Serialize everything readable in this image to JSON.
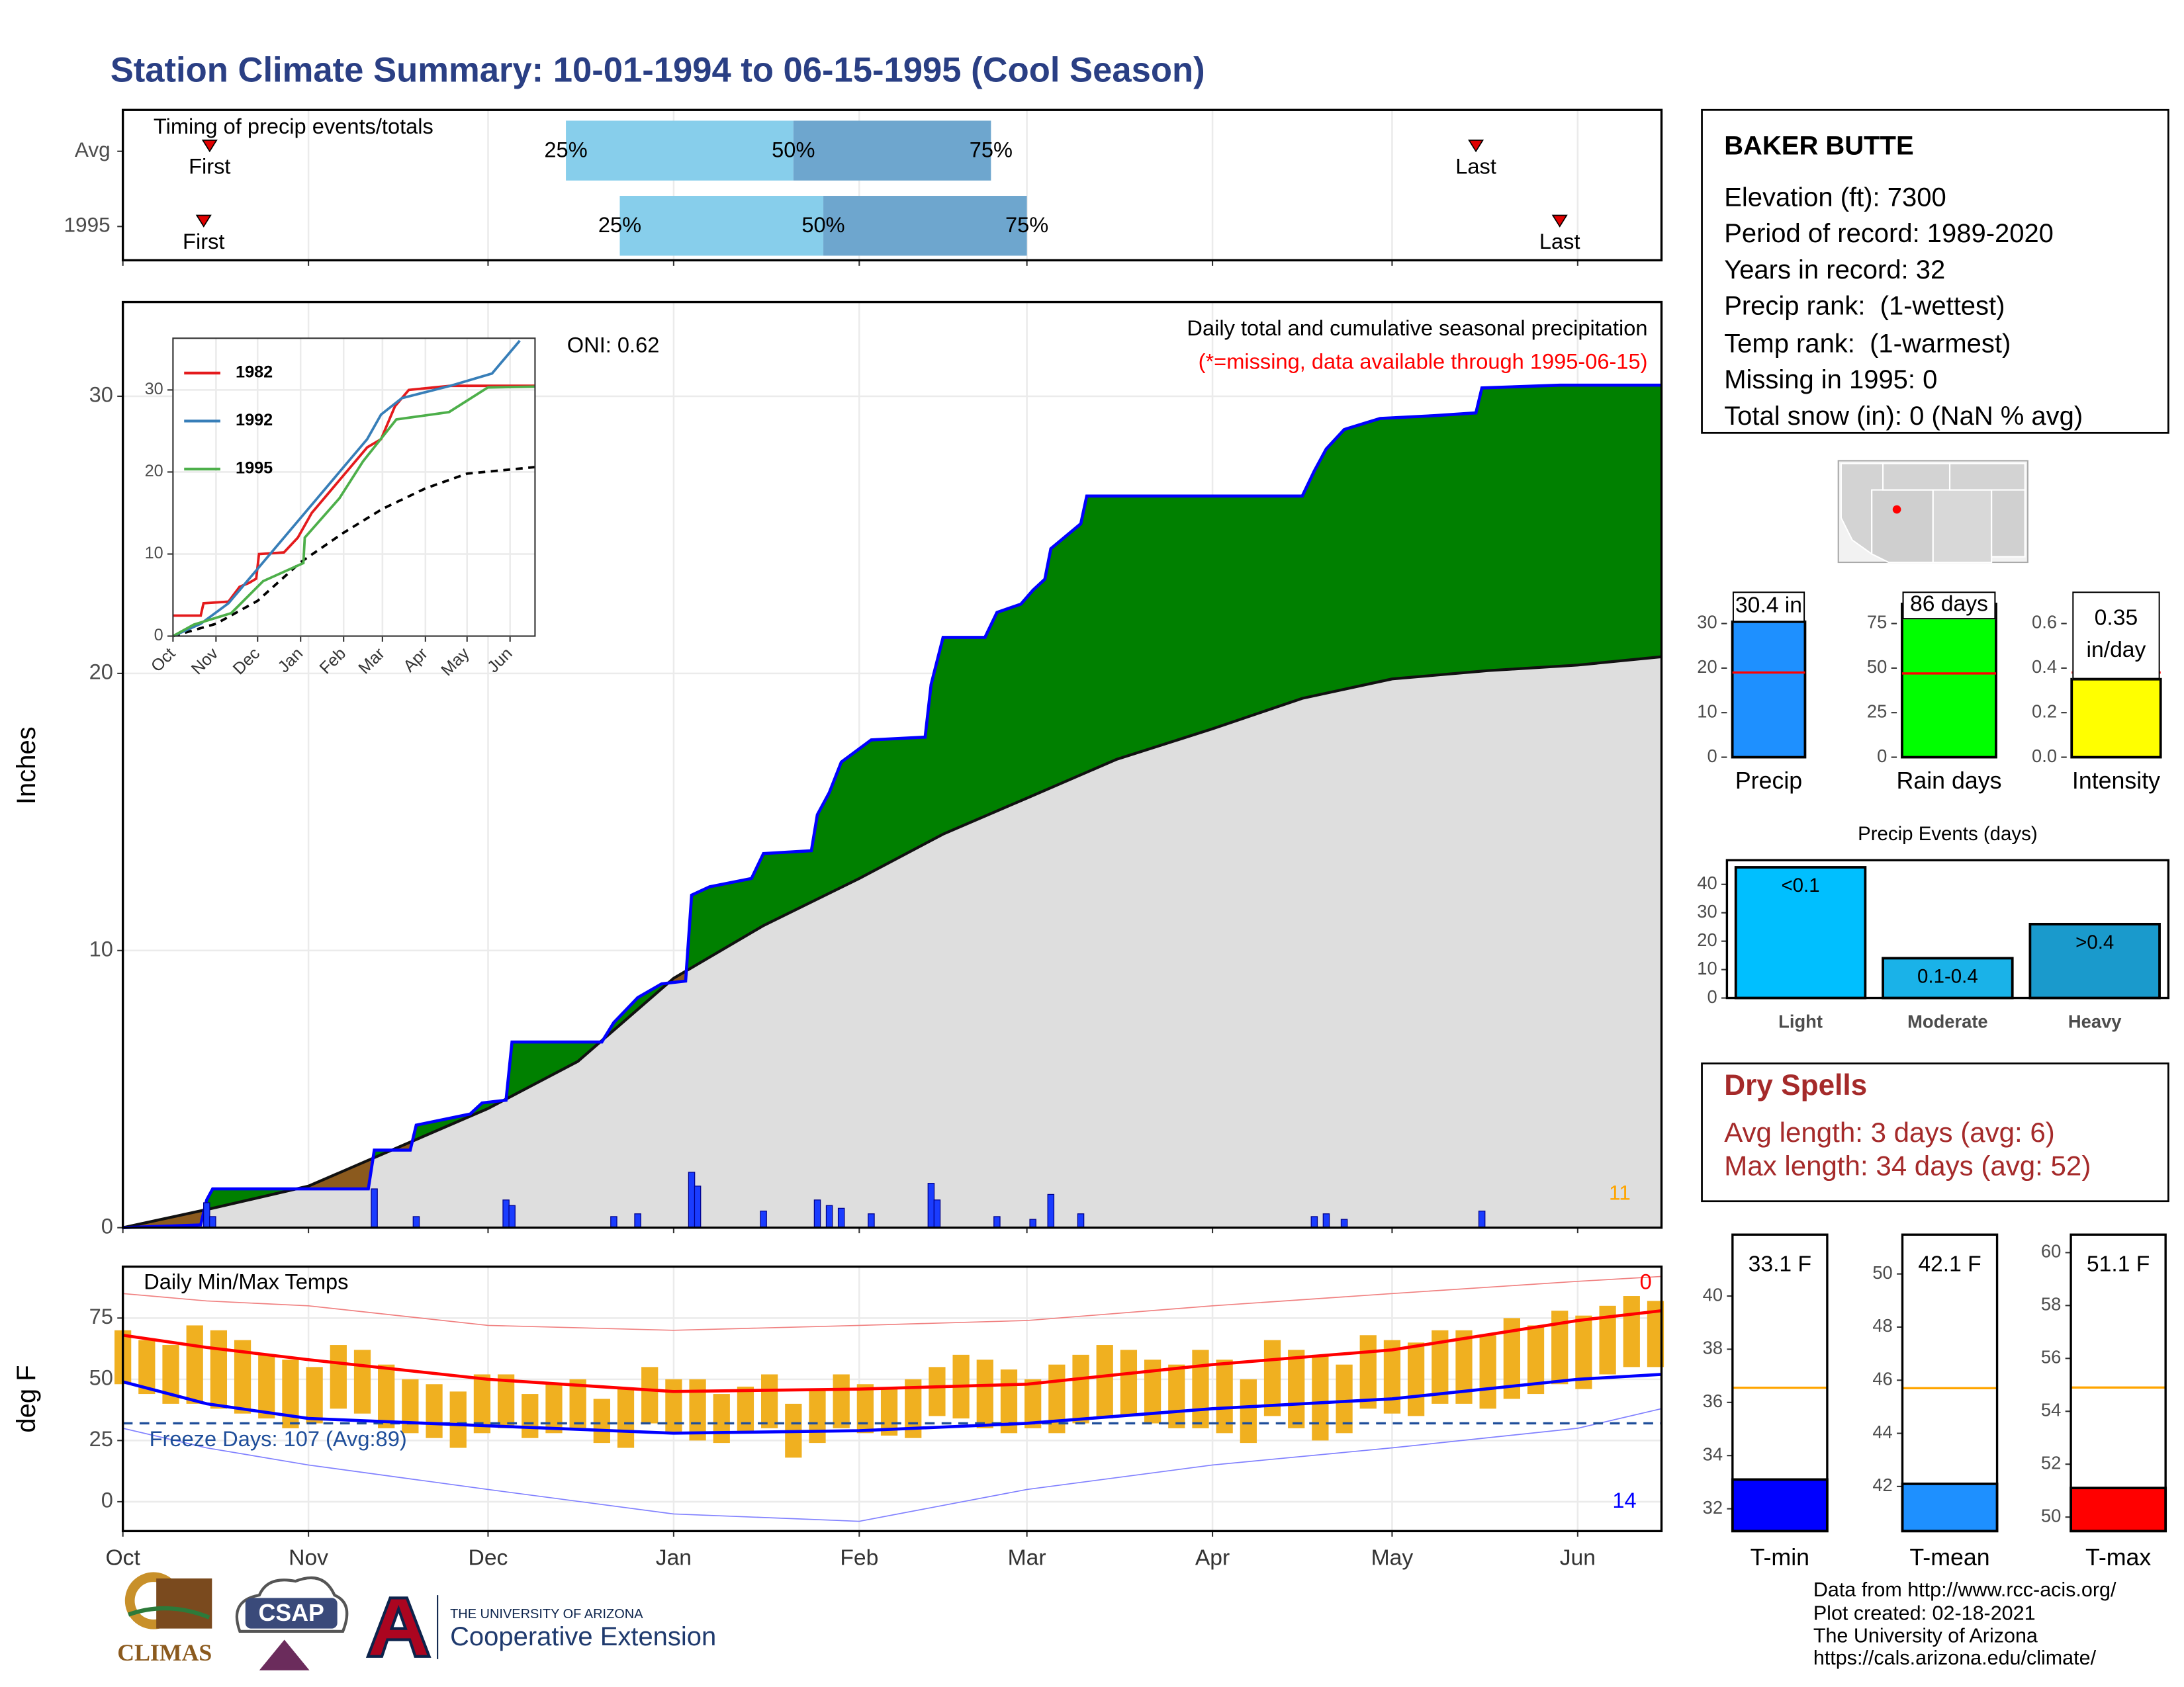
{
  "title": "Station Climate Summary: 10-01-1994 to 06-15-1995 (Cool Season)",
  "chart_data": [
    {
      "type": "timeline",
      "title": "Timing of precip events/totals",
      "categories": [
        "Avg",
        "1995"
      ],
      "first": [
        14.5,
        13.5
      ],
      "q25": [
        74,
        83
      ],
      "q50": [
        112,
        117
      ],
      "q75": [
        145,
        151
      ],
      "last": [
        226,
        240
      ],
      "marker_labels": {
        "first": "First",
        "last": "Last"
      },
      "quantile_labels": {
        "q25": "25%",
        "q50": "50%",
        "q75": "75%"
      },
      "colors": [
        "#87ceeb",
        "#6ea6ce"
      ],
      "marker_color": "#e00000",
      "xlim": [
        0,
        257
      ],
      "xticks": [
        0,
        31,
        61,
        92,
        123,
        151,
        182,
        212,
        243
      ],
      "grid": true
    },
    {
      "type": "cumulative",
      "title": "Daily total and cumulative seasonal precipitation",
      "subtitle": "(*=missing, data available through 1995-06-15)",
      "subtitle_color": "#ff0000",
      "annotation": "ONI: 0.62",
      "count_label": "11",
      "count_color": "#ffa500",
      "ylabel": "Inches",
      "xlim": [
        0,
        257
      ],
      "ylim": [
        0,
        33.4
      ],
      "xticks": [
        0,
        31,
        61,
        92,
        123,
        151,
        182,
        212,
        243
      ],
      "yticks": [
        0,
        10,
        20,
        30
      ],
      "grid": true,
      "observed": {
        "x": [
          0,
          13,
          14,
          15,
          41,
          42,
          48,
          49,
          58,
          60,
          64,
          65,
          80,
          82,
          86,
          90,
          94,
          95,
          98,
          105,
          107,
          115,
          116,
          118,
          120,
          125,
          134,
          135,
          137,
          144,
          146,
          150,
          152,
          154,
          155,
          160,
          161,
          197,
          199,
          201,
          204,
          210,
          219,
          226,
          227,
          240,
          257
        ],
        "values": [
          0,
          0.1,
          1.0,
          1.4,
          1.4,
          2.8,
          2.8,
          3.7,
          4.1,
          4.5,
          4.6,
          6.7,
          6.7,
          7.4,
          8.3,
          8.8,
          8.9,
          12.0,
          12.3,
          12.6,
          13.5,
          13.6,
          14.9,
          15.7,
          16.8,
          17.6,
          17.7,
          19.6,
          21.3,
          21.3,
          22.2,
          22.5,
          23.0,
          23.4,
          24.5,
          25.4,
          26.4,
          26.4,
          27.3,
          28.1,
          28.8,
          29.2,
          29.3,
          29.4,
          30.3,
          30.4,
          30.4
        ],
        "color": "#0000ff"
      },
      "average": {
        "x": [
          0,
          15,
          31,
          46,
          61,
          76,
          92,
          107,
          123,
          137,
          151,
          166,
          182,
          197,
          212,
          228,
          243,
          257
        ],
        "values": [
          0,
          0.7,
          1.5,
          2.9,
          4.3,
          6.0,
          9.0,
          10.9,
          12.6,
          14.2,
          15.5,
          16.9,
          18.0,
          19.1,
          19.8,
          20.1,
          20.3,
          20.6
        ],
        "color": "#111111"
      },
      "daily": {
        "x": [
          14,
          15,
          42,
          49,
          64,
          65,
          82,
          86,
          95,
          96,
          107,
          116,
          118,
          120,
          125,
          135,
          136,
          146,
          152,
          155,
          160,
          199,
          201,
          204,
          227
        ],
        "values": [
          0.9,
          0.4,
          1.4,
          0.4,
          1.0,
          0.8,
          0.4,
          0.5,
          2.0,
          1.5,
          0.6,
          1.0,
          0.8,
          0.7,
          0.5,
          1.6,
          1.0,
          0.4,
          0.3,
          1.2,
          0.5,
          0.4,
          0.5,
          0.3,
          0.6
        ],
        "color": "#1a3cff"
      },
      "fill_colors": {
        "above": "#008000",
        "below": "#8b5a1e",
        "base": "#dedede"
      }
    },
    {
      "type": "line",
      "xlim": [
        0,
        261
      ],
      "ylim": [
        0,
        36.3
      ],
      "xticks": [
        {
          "value": 0,
          "label": "Oct"
        },
        {
          "value": 31,
          "label": "Nov"
        },
        {
          "value": 61,
          "label": "Dec"
        },
        {
          "value": 92,
          "label": "Jan"
        },
        {
          "value": 123,
          "label": "Feb"
        },
        {
          "value": 151,
          "label": "Mar"
        },
        {
          "value": 182,
          "label": "Apr"
        },
        {
          "value": 212,
          "label": "May"
        },
        {
          "value": 243,
          "label": "Jun"
        }
      ],
      "yticks": [
        0,
        10,
        20,
        30
      ],
      "grid": true,
      "series": [
        {
          "name": "1982",
          "color": "#e41a1c",
          "x": [
            0,
            20,
            22,
            40,
            48,
            55,
            60,
            62,
            80,
            90,
            100,
            115,
            125,
            140,
            150,
            160,
            170,
            200,
            261
          ],
          "values": [
            2.5,
            2.5,
            4,
            4.2,
            6,
            6.5,
            7,
            10,
            10.2,
            12,
            15,
            18,
            20,
            23,
            24,
            28,
            30,
            30.5,
            30.5
          ]
        },
        {
          "name": "1992",
          "color": "#377eb8",
          "x": [
            0,
            20,
            40,
            60,
            80,
            100,
            120,
            140,
            150,
            165,
            200,
            230,
            250
          ],
          "values": [
            0,
            1.5,
            4,
            8,
            12,
            16,
            20,
            24,
            27,
            29,
            30.5,
            32,
            36
          ]
        },
        {
          "name": "1995",
          "color": "#4daf4a",
          "x": [
            0,
            15,
            42,
            65,
            94,
            95,
            120,
            137,
            161,
            199,
            227,
            261
          ],
          "values": [
            0,
            1.4,
            2.8,
            6.7,
            8.9,
            12.0,
            16.8,
            21.3,
            26.4,
            27.3,
            30.3,
            30.4
          ]
        }
      ],
      "reference": {
        "x": [
          0,
          31,
          61,
          92,
          123,
          151,
          182,
          212,
          243,
          261
        ],
        "values": [
          0,
          1.5,
          4.3,
          9.0,
          12.6,
          15.5,
          18.0,
          19.8,
          20.3,
          20.6
        ],
        "color": "#000000"
      }
    },
    {
      "type": "temperature",
      "title": "Daily Min/Max Temps",
      "ylabel": "deg F",
      "xlim": [
        0,
        257
      ],
      "ylim": [
        -12,
        96
      ],
      "xticks": [
        {
          "value": 0,
          "label": "Oct"
        },
        {
          "value": 31,
          "label": "Nov"
        },
        {
          "value": 61,
          "label": "Dec"
        },
        {
          "value": 92,
          "label": "Jan"
        },
        {
          "value": 123,
          "label": "Feb"
        },
        {
          "value": 151,
          "label": "Mar"
        },
        {
          "value": 182,
          "label": "Apr"
        },
        {
          "value": 212,
          "label": "May"
        },
        {
          "value": 243,
          "label": "Jun"
        }
      ],
      "yticks": [
        0,
        25,
        50,
        75
      ],
      "grid": true,
      "daily": {
        "x": [
          0,
          4,
          8,
          12,
          16,
          20,
          24,
          28,
          32,
          36,
          40,
          44,
          48,
          52,
          56,
          60,
          64,
          68,
          72,
          76,
          80,
          84,
          88,
          92,
          96,
          100,
          104,
          108,
          112,
          116,
          120,
          124,
          128,
          132,
          136,
          140,
          144,
          148,
          152,
          156,
          160,
          164,
          168,
          172,
          176,
          180,
          184,
          188,
          192,
          196,
          200,
          204,
          208,
          212,
          216,
          220,
          224,
          228,
          232,
          236,
          240,
          244,
          248,
          252,
          256
        ],
        "max": [
          70,
          66,
          64,
          72,
          70,
          66,
          60,
          58,
          55,
          64,
          62,
          56,
          50,
          48,
          45,
          52,
          52,
          44,
          48,
          50,
          42,
          46,
          55,
          50,
          50,
          44,
          47,
          52,
          40,
          46,
          52,
          48,
          46,
          50,
          55,
          60,
          58,
          54,
          50,
          56,
          60,
          64,
          62,
          58,
          56,
          62,
          58,
          50,
          66,
          62,
          60,
          56,
          68,
          66,
          65,
          70,
          70,
          68,
          75,
          72,
          78,
          76,
          80,
          84,
          82
        ],
        "min": [
          48,
          44,
          40,
          40,
          38,
          36,
          34,
          30,
          32,
          38,
          36,
          30,
          28,
          26,
          22,
          28,
          30,
          26,
          28,
          30,
          24,
          22,
          32,
          28,
          25,
          24,
          28,
          30,
          18,
          24,
          30,
          28,
          27,
          26,
          35,
          34,
          30,
          28,
          30,
          28,
          32,
          34,
          35,
          32,
          30,
          30,
          28,
          24,
          35,
          30,
          25,
          28,
          38,
          36,
          35,
          40,
          40,
          38,
          42,
          44,
          48,
          46,
          52,
          55,
          55
        ],
        "color": "#f0b020"
      },
      "normal_max": {
        "x": [
          0,
          14,
          31,
          61,
          92,
          123,
          151,
          182,
          212,
          243,
          257
        ],
        "values": [
          68,
          63,
          58,
          50,
          45,
          46,
          48,
          56,
          62,
          74,
          78
        ],
        "color": "#ff0000"
      },
      "normal_min": {
        "x": [
          0,
          14,
          31,
          61,
          92,
          123,
          151,
          182,
          212,
          243,
          257
        ],
        "values": [
          49,
          40,
          34,
          31,
          28,
          29,
          32,
          38,
          42,
          50,
          52
        ],
        "color": "#0000ff"
      },
      "record_high": {
        "x": [
          0,
          14,
          31,
          61,
          92,
          123,
          151,
          182,
          212,
          243,
          257
        ],
        "values": [
          85,
          82,
          80,
          72,
          70,
          72,
          74,
          80,
          85,
          90,
          92
        ],
        "color": "#f08080"
      },
      "record_low": {
        "x": [
          0,
          14,
          31,
          61,
          92,
          123,
          151,
          182,
          212,
          243,
          257
        ],
        "values": [
          30,
          22,
          15,
          5,
          -5,
          -8,
          5,
          15,
          22,
          30,
          38
        ],
        "color": "#8080ff"
      },
      "freeze_threshold": 32,
      "freeze_color": "#1f4e9a",
      "freeze_label": "Freeze Days: 107 (Avg:89)",
      "high_count": "0",
      "high_color": "#ff0000",
      "low_count": "14",
      "low_color": "#0000ff"
    },
    {
      "type": "bar",
      "categories": [
        "Precip"
      ],
      "values": [
        30.4
      ],
      "value_labels": [
        "30.4 in"
      ],
      "colors": [
        "#1e90ff"
      ],
      "average": 19,
      "average_color": "#ff0000",
      "ylim": [
        0,
        37.8
      ],
      "yticks": [
        0,
        10,
        20,
        30
      ]
    },
    {
      "type": "bar",
      "categories": [
        "Rain days"
      ],
      "values": [
        86
      ],
      "value_labels": [
        "86 days"
      ],
      "colors": [
        "#00ff00"
      ],
      "average": 47,
      "average_color": "#ff0000",
      "ylim": [
        0,
        94.5
      ],
      "yticks": [
        0,
        25,
        50,
        75
      ]
    },
    {
      "type": "bar",
      "categories": [
        "Intensity"
      ],
      "values": [
        0.35
      ],
      "value_labels": [
        "0.35 in/day"
      ],
      "colors": [
        "#ffff00"
      ],
      "average": 0.38,
      "average_color": "#ff0000",
      "ylim": [
        0,
        0.756
      ],
      "yticks": [
        {
          "value": 0,
          "label": "0.0"
        },
        0.2,
        0.4,
        0.6
      ]
    },
    {
      "type": "bar",
      "title": "Precip Events (days)",
      "categories": [
        "Light",
        "Moderate",
        "Heavy"
      ],
      "bar_labels": [
        "<0.1",
        "0.1-0.4",
        ">0.4"
      ],
      "values": [
        46,
        14,
        26
      ],
      "colors": [
        "#00bfff",
        "#1ab2e8",
        "#1a9acc"
      ],
      "ylim": [
        0,
        48.5
      ],
      "yticks": [
        0,
        10,
        20,
        30,
        40
      ]
    },
    {
      "type": "bar",
      "categories": [
        "T-min"
      ],
      "values": [
        33.1
      ],
      "value_labels": [
        "33.1 F"
      ],
      "colors": [
        "#0000ff"
      ],
      "average": 36.55,
      "average_color": "#ffa500",
      "ylim": [
        31.16,
        42.31
      ],
      "yticks": [
        32,
        34,
        36,
        38,
        40
      ]
    },
    {
      "type": "bar",
      "categories": [
        "T-mean"
      ],
      "values": [
        42.1
      ],
      "value_labels": [
        "42.1 F"
      ],
      "colors": [
        "#1e90ff"
      ],
      "average": 45.7,
      "average_color": "#ffa500",
      "ylim": [
        40.32,
        51.48
      ],
      "yticks": [
        42,
        44,
        46,
        48,
        50
      ]
    },
    {
      "type": "bar",
      "categories": [
        "T-max"
      ],
      "values": [
        51.1
      ],
      "value_labels": [
        "51.1 F"
      ],
      "colors": [
        "#ff0000"
      ],
      "average": 54.9,
      "average_color": "#ffa500",
      "ylim": [
        49.47,
        60.68
      ],
      "yticks": [
        50,
        52,
        54,
        56,
        58,
        60
      ]
    }
  ],
  "station_info": {
    "name": "BAKER BUTTE",
    "lines": [
      "Elevation (ft): 7300",
      "Period of record: 1989-2020",
      "Years in record: 32",
      "Precip rank:  (1-wettest)",
      "Temp rank:  (1-warmest)",
      "Missing in 1995: 0",
      "Total snow (in): 0 (NaN % avg)"
    ]
  },
  "dry_spells": {
    "title": "Dry Spells",
    "lines": [
      "Avg length: 3 days (avg: 6)",
      "Max length: 34 days (avg: 52)"
    ]
  },
  "footer": [
    "Data from http://www.rcc-acis.org/",
    "Plot created: 02-18-2021",
    "The University of Arizona",
    "https://cals.arizona.edu/climate/"
  ],
  "logos": {
    "climas": "CLIMAS",
    "csap": "CSAP",
    "university": "THE UNIVERSITY OF ARIZONA",
    "extension": "Cooperative Extension"
  }
}
